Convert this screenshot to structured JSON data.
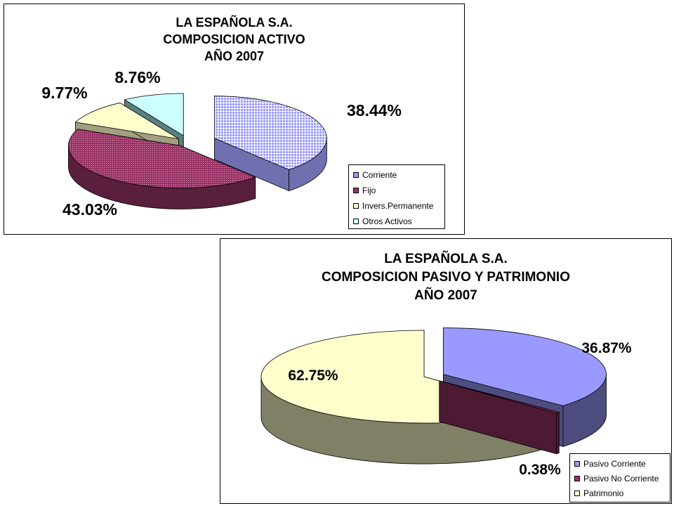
{
  "chart_data": [
    {
      "type": "pie",
      "title": "LA ESPAÑOLA S.A.",
      "subtitle": "COMPOSICION ACTIVO",
      "year": "AÑO 2007",
      "categories": [
        "Corriente",
        "Fijo",
        "Invers.Permanente",
        "Otros Activos"
      ],
      "values": [
        38.44,
        43.03,
        9.77,
        8.76
      ],
      "labels": [
        "38.44%",
        "43.03%",
        "9.77%",
        "8.76%"
      ],
      "colors": [
        "#9999ff",
        "#993366",
        "#ffffcc",
        "#ccffff"
      ],
      "side_colors": [
        "#7070b0",
        "#5a1f3c",
        "#a0a080",
        "#5a8080"
      ],
      "patterns": [
        "grid",
        "dots",
        "none",
        "none"
      ],
      "legend_position": "bottom-right",
      "exploded": true,
      "style": "3d"
    },
    {
      "type": "pie",
      "title": "LA ESPAÑOLA S.A.",
      "subtitle": "COMPOSICION PASIVO Y PATRIMONIO",
      "year": "AÑO 2007",
      "categories": [
        "Pasivo Corriente",
        "Pasivo No Corriente",
        "Patrimonio"
      ],
      "values": [
        36.87,
        0.38,
        62.75
      ],
      "labels": [
        "36.87%",
        "0.38%",
        "62.75%"
      ],
      "colors": [
        "#9999ff",
        "#993366",
        "#ffffcc"
      ],
      "side_colors": [
        "#4d4d80",
        "#4d1a33",
        "#808066"
      ],
      "patterns": [
        "none",
        "none",
        "none"
      ],
      "legend_position": "bottom-right",
      "exploded": true,
      "style": "3d"
    }
  ]
}
